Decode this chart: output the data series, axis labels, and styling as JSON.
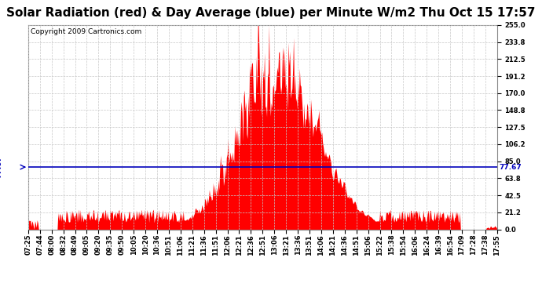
{
  "title": "Solar Radiation (red) & Day Average (blue) per Minute W/m2 Thu Oct 15 17:57",
  "copyright": "Copyright 2009 Cartronics.com",
  "avg_value": 77.67,
  "ymin": 0.0,
  "ymax": 255.0,
  "yticks": [
    0.0,
    21.2,
    42.5,
    63.8,
    85.0,
    106.2,
    127.5,
    148.8,
    170.0,
    191.2,
    212.5,
    233.8,
    255.0
  ],
  "xtick_labels": [
    "07:25",
    "07:44",
    "08:00",
    "08:32",
    "08:49",
    "09:05",
    "09:20",
    "09:35",
    "09:50",
    "10:05",
    "10:20",
    "10:36",
    "10:51",
    "11:06",
    "11:21",
    "11:36",
    "11:51",
    "12:06",
    "12:21",
    "12:36",
    "12:51",
    "13:06",
    "13:21",
    "13:36",
    "13:51",
    "14:06",
    "14:21",
    "14:36",
    "14:51",
    "15:06",
    "15:22",
    "15:38",
    "15:54",
    "16:06",
    "16:24",
    "16:39",
    "16:54",
    "17:09",
    "17:28",
    "17:38",
    "17:55"
  ],
  "background_color": "#ffffff",
  "grid_color": "#c8c8c8",
  "bar_color": "#ff0000",
  "line_color": "#0000bb",
  "title_fontsize": 11,
  "copyright_fontsize": 6.5,
  "tick_fontsize": 6,
  "avg_label_fontsize": 6.5
}
